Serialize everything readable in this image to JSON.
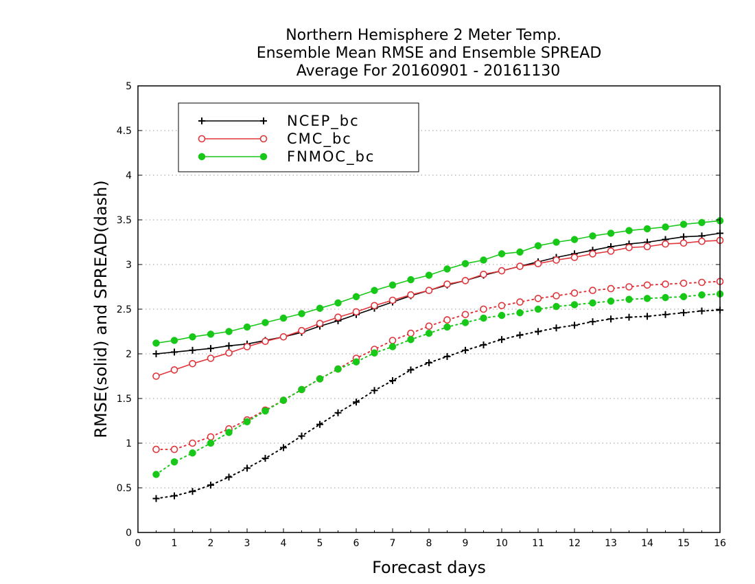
{
  "chart_data": {
    "type": "line",
    "title_lines": [
      "Northern Hemisphere 2 Meter Temp.",
      "Ensemble Mean RMSE and Ensemble SPREAD",
      "Average For 20160901 - 20161130"
    ],
    "xlabel": "Forecast days",
    "ylabel": "RMSE(solid) and SPREAD(dash)",
    "xlim": [
      0,
      16
    ],
    "ylim": [
      0,
      5
    ],
    "xticks": [
      "0",
      "1",
      "2",
      "3",
      "4",
      "5",
      "6",
      "7",
      "8",
      "9",
      "10",
      "11",
      "12",
      "13",
      "14",
      "15",
      "16"
    ],
    "yticks": [
      "0",
      "0.5",
      "1",
      "1.5",
      "2",
      "2.5",
      "3",
      "3.5",
      "4",
      "4.5",
      "5"
    ],
    "grid": "horizontal dotted",
    "legend_position": "top-left",
    "x": [
      0.5,
      1,
      1.5,
      2,
      2.5,
      3,
      3.5,
      4,
      4.5,
      5,
      5.5,
      6,
      6.5,
      7,
      7.5,
      8,
      8.5,
      9,
      9.5,
      10,
      10.5,
      11,
      11.5,
      12,
      12.5,
      13,
      13.5,
      14,
      14.5,
      15,
      15.5,
      16
    ],
    "series": [
      {
        "name": "NCEP_bc",
        "color": "#000000",
        "marker": "plus",
        "rmse": [
          2.0,
          2.02,
          2.04,
          2.06,
          2.09,
          2.11,
          2.15,
          2.19,
          2.24,
          2.31,
          2.37,
          2.44,
          2.51,
          2.58,
          2.65,
          2.71,
          2.77,
          2.82,
          2.88,
          2.93,
          2.98,
          3.03,
          3.08,
          3.12,
          3.16,
          3.2,
          3.23,
          3.25,
          3.28,
          3.31,
          3.32,
          3.35
        ],
        "spread": [
          0.38,
          0.41,
          0.46,
          0.53,
          0.62,
          0.72,
          0.83,
          0.95,
          1.08,
          1.21,
          1.34,
          1.46,
          1.59,
          1.7,
          1.82,
          1.9,
          1.97,
          2.04,
          2.1,
          2.16,
          2.21,
          2.25,
          2.29,
          2.32,
          2.36,
          2.39,
          2.41,
          2.42,
          2.44,
          2.46,
          2.48,
          2.49
        ]
      },
      {
        "name": "CMC_bc",
        "color": "#e0353a",
        "marker": "open-circle",
        "rmse": [
          1.75,
          1.82,
          1.89,
          1.95,
          2.01,
          2.08,
          2.14,
          2.19,
          2.26,
          2.34,
          2.41,
          2.47,
          2.54,
          2.6,
          2.66,
          2.71,
          2.78,
          2.82,
          2.89,
          2.93,
          2.98,
          3.01,
          3.05,
          3.08,
          3.12,
          3.15,
          3.19,
          3.2,
          3.23,
          3.24,
          3.26,
          3.27
        ],
        "spread": [
          0.93,
          0.93,
          1.0,
          1.07,
          1.16,
          1.26,
          1.37,
          1.48,
          1.6,
          1.72,
          1.83,
          1.95,
          2.05,
          2.15,
          2.23,
          2.31,
          2.38,
          2.44,
          2.5,
          2.54,
          2.58,
          2.62,
          2.65,
          2.68,
          2.71,
          2.73,
          2.75,
          2.77,
          2.78,
          2.79,
          2.8,
          2.81
        ]
      },
      {
        "name": "FNMOC_bc",
        "color": "#18c818",
        "marker": "filled-circle",
        "rmse": [
          2.12,
          2.15,
          2.19,
          2.22,
          2.25,
          2.3,
          2.35,
          2.4,
          2.45,
          2.51,
          2.57,
          2.64,
          2.71,
          2.77,
          2.83,
          2.88,
          2.95,
          3.01,
          3.05,
          3.12,
          3.14,
          3.21,
          3.25,
          3.28,
          3.32,
          3.35,
          3.38,
          3.4,
          3.42,
          3.45,
          3.47,
          3.49
        ],
        "spread": [
          0.65,
          0.79,
          0.89,
          1.0,
          1.12,
          1.24,
          1.36,
          1.48,
          1.6,
          1.72,
          1.83,
          1.91,
          2.01,
          2.08,
          2.16,
          2.23,
          2.3,
          2.35,
          2.4,
          2.43,
          2.46,
          2.5,
          2.53,
          2.55,
          2.57,
          2.59,
          2.61,
          2.62,
          2.63,
          2.64,
          2.66,
          2.67
        ]
      }
    ]
  }
}
